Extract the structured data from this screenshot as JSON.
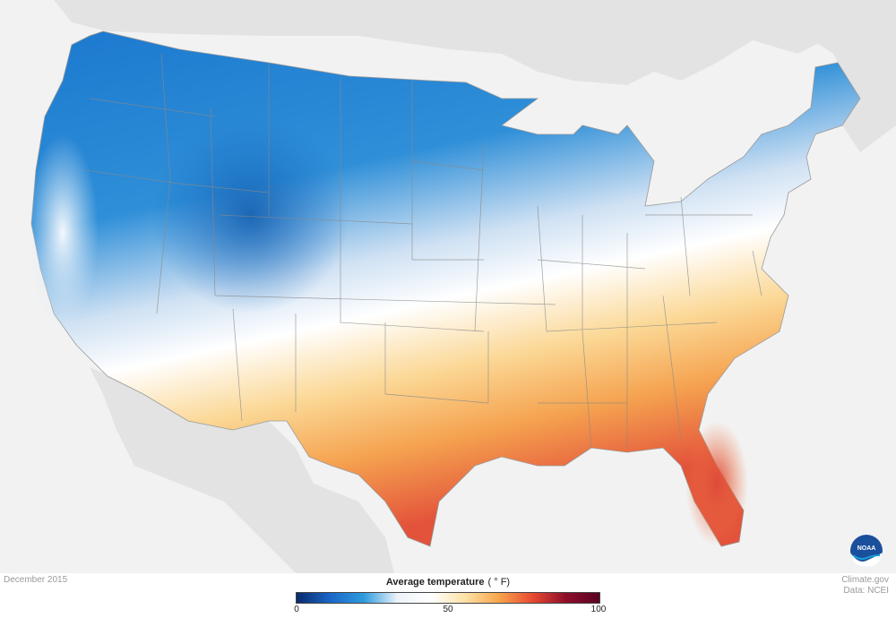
{
  "map": {
    "period": "December 2015",
    "legend": {
      "title": "Average temperature",
      "unit": "( ° F)",
      "ticks": [
        "0",
        "50",
        "100"
      ],
      "range": [
        0,
        100
      ],
      "colors": [
        "#0a2a6b",
        "#1a66c8",
        "#2e9bdc",
        "#eef3fa",
        "#ffffff",
        "#fde2a6",
        "#f7a64d",
        "#e84b32",
        "#8f0f2a",
        "#5a0224"
      ]
    },
    "credit": {
      "site": "Climate.gov",
      "source": "Data: NCEI"
    },
    "logo": {
      "icon": "noaa-logo-icon",
      "text": "NOAA"
    },
    "colors": {
      "background": "#f2f2f2",
      "land_outside": "#e2e2e2",
      "state_borders": "#8a8a8a"
    }
  }
}
